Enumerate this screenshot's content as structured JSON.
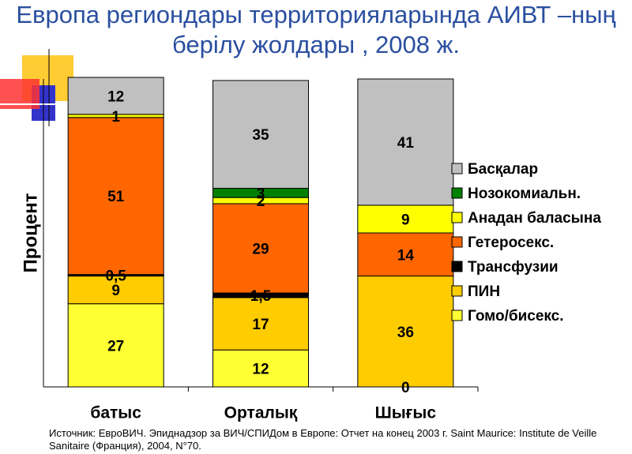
{
  "chart_data": {
    "type": "stacked_bar",
    "title": "Европа региондары территорияларында АИВТ –ның берілу жолдары , 2008 ж.",
    "y_label": "Процент",
    "categories": [
      "батыс",
      "Орталық",
      "Шығыс"
    ],
    "ylim": [
      0,
      100
    ],
    "series": [
      {
        "name": "Гомо/бисекс.",
        "color": "#ffff33",
        "values": [
          27,
          12,
          0
        ]
      },
      {
        "name": "ПИН",
        "color": "#ffcc00",
        "values": [
          9,
          17,
          36
        ]
      },
      {
        "name": "Трансфузии",
        "color": "#000000",
        "values": [
          0.5,
          1.5,
          null
        ],
        "value_labels": [
          "0,5",
          "1,5",
          null
        ]
      },
      {
        "name": "Гетеросекс.",
        "color": "#ff6600",
        "values": [
          51,
          29,
          14
        ]
      },
      {
        "name": "Анадан баласына",
        "color": "#ffff00",
        "values": [
          1,
          2,
          9
        ]
      },
      {
        "name": "Нозокомиальн.",
        "color": "#008000",
        "values": [
          null,
          3,
          null
        ]
      },
      {
        "name": "Басқалар",
        "color": "#c0c0c0",
        "values": [
          12,
          35,
          41
        ]
      }
    ],
    "source": "Источник: ЕвроВИЧ. Эпиднадзор за ВИЧ/СПИДом в Европе: Отчет на конец 2003 г. Saint Maurice: Institute de Veille Sanitaire (Франция), 2004, N°70."
  }
}
